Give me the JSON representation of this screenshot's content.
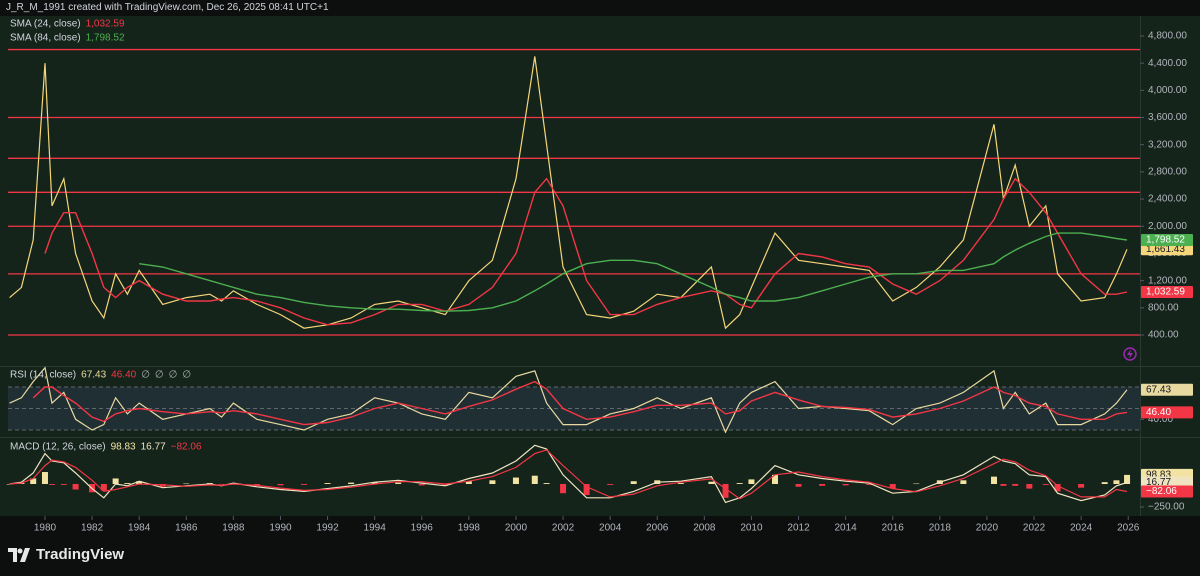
{
  "header": "J_R_M_1991 created with TradingView.com, Dec 26, 2025 08:41 UTC+1",
  "brand": "TradingView",
  "chart_data": [
    {
      "type": "line",
      "x": [
        1978.5,
        1979,
        1979.5,
        1980,
        1980.3,
        1980.8,
        1981.3,
        1982,
        1982.5,
        1983,
        1983.5,
        1984,
        1985,
        1986,
        1987,
        1987.5,
        1988,
        1989,
        1990,
        1991,
        1992,
        1993,
        1994,
        1995,
        1996,
        1997,
        1998,
        1999,
        2000,
        2000.8,
        2001.3,
        2002,
        2003,
        2004,
        2005,
        2006,
        2007,
        2008.3,
        2008.9,
        2009.5,
        2010,
        2011,
        2012,
        2013,
        2014,
        2015,
        2016,
        2017,
        2018,
        2019,
        2020.3,
        2020.7,
        2021.2,
        2021.8,
        2022.5,
        2023,
        2024,
        2025,
        2025.5,
        2025.95
      ],
      "xlim": [
        1978.43,
        2026.5
      ],
      "ylim": [
        -56,
        5094
      ],
      "yticks": [
        {
          "value": 4800,
          "label": "4,800.00"
        },
        {
          "value": 4400,
          "label": "4,400.00"
        },
        {
          "value": 4000,
          "label": "4,000.00"
        },
        {
          "value": 3600,
          "label": "3,600.00"
        },
        {
          "value": 3200,
          "label": "3,200.00"
        },
        {
          "value": 2800,
          "label": "2,800.00"
        },
        {
          "value": 2400,
          "label": "2,400.00"
        },
        {
          "value": 2000,
          "label": "2,000.00"
        },
        {
          "value": 1600,
          "label": "1,600.00"
        },
        {
          "value": 1200,
          "label": "1,200.00"
        },
        {
          "value": 800,
          "label": "800.00"
        },
        {
          "value": 400,
          "label": "400.00"
        }
      ],
      "levels": [
        4600,
        3600,
        3000,
        2500,
        2000,
        1300,
        400
      ],
      "levels_color": "#f23645",
      "series": [
        {
          "color": "#f5d67a",
          "last_label": "1,661.43",
          "values": [
            950,
            1100,
            1800,
            4400,
            2300,
            2700,
            1600,
            900,
            650,
            1300,
            1000,
            1350,
            850,
            950,
            1000,
            900,
            1050,
            850,
            700,
            500,
            550,
            650,
            850,
            900,
            800,
            700,
            1200,
            1500,
            2700,
            4500,
            3200,
            1400,
            700,
            650,
            750,
            1000,
            950,
            1400,
            500,
            700,
            1100,
            1900,
            1500,
            1450,
            1400,
            1350,
            900,
            1100,
            1400,
            1800,
            3500,
            2400,
            2900,
            2000,
            2300,
            1300,
            900,
            950,
            1300,
            1661.43
          ]
        },
        {
          "name": "SMA (24, close)",
          "color": "#f23645",
          "last_label": "1,032.59",
          "values": [
            null,
            null,
            null,
            1600,
            1900,
            2200,
            2200,
            1600,
            1100,
            950,
            1100,
            1200,
            1000,
            900,
            900,
            930,
            950,
            900,
            800,
            650,
            550,
            580,
            700,
            850,
            850,
            750,
            850,
            1100,
            1600,
            2500,
            2700,
            2300,
            1200,
            700,
            700,
            850,
            950,
            1050,
            1000,
            850,
            800,
            1300,
            1600,
            1550,
            1450,
            1400,
            1150,
            1000,
            1200,
            1500,
            2100,
            2400,
            2700,
            2500,
            2200,
            1900,
            1300,
            1000,
            1000,
            1032.59
          ]
        },
        {
          "name": "SMA (84, close)",
          "color": "#4caf50",
          "last_label": "1,798.52",
          "values": [
            null,
            null,
            null,
            null,
            null,
            null,
            null,
            null,
            null,
            null,
            null,
            1450,
            1400,
            1300,
            1200,
            1150,
            1100,
            1000,
            950,
            880,
            830,
            800,
            780,
            780,
            760,
            750,
            760,
            800,
            900,
            1050,
            1150,
            1300,
            1450,
            1500,
            1500,
            1450,
            1300,
            1100,
            1000,
            950,
            900,
            900,
            950,
            1050,
            1150,
            1250,
            1300,
            1300,
            1350,
            1350,
            1450,
            1550,
            1650,
            1750,
            1850,
            1900,
            1900,
            1850,
            1820,
            1798.52
          ]
        }
      ]
    },
    {
      "type": "line",
      "title": "RSI (14, close)",
      "extra": [
        "∅",
        "∅",
        "∅",
        "∅"
      ],
      "x": [
        1978.5,
        1979,
        1979.5,
        1980,
        1980.3,
        1980.8,
        1981.3,
        1982,
        1982.5,
        1983,
        1983.5,
        1984,
        1985,
        1986,
        1987,
        1987.5,
        1988,
        1989,
        1990,
        1991,
        1992,
        1993,
        1994,
        1995,
        1996,
        1997,
        1998,
        1999,
        2000,
        2000.8,
        2001.3,
        2002,
        2003,
        2004,
        2005,
        2006,
        2007,
        2008.3,
        2008.9,
        2009.5,
        2010,
        2011,
        2012,
        2013,
        2014,
        2015,
        2016,
        2017,
        2018,
        2019,
        2020.3,
        2020.7,
        2021.2,
        2021.8,
        2022.5,
        2023,
        2024,
        2025,
        2025.5,
        2025.95
      ],
      "xlim": [
        1978.43,
        2026.5
      ],
      "ylim": [
        23.5,
        87.7
      ],
      "yticks": [
        {
          "value": 40,
          "label": "40.00"
        }
      ],
      "bands": [
        30,
        50,
        70
      ],
      "band_fill": "#1f2f33",
      "series": [
        {
          "color": "#e8d9a0",
          "last_label": "67.43",
          "values": [
            55,
            60,
            75,
            88,
            55,
            65,
            40,
            30,
            35,
            60,
            45,
            55,
            40,
            45,
            50,
            42,
            55,
            40,
            35,
            30,
            40,
            45,
            60,
            55,
            45,
            40,
            65,
            60,
            80,
            85,
            55,
            35,
            35,
            45,
            50,
            60,
            50,
            60,
            28,
            55,
            65,
            75,
            50,
            52,
            50,
            48,
            35,
            50,
            55,
            65,
            85,
            50,
            65,
            45,
            55,
            35,
            35,
            45,
            55,
            67.43
          ]
        },
        {
          "color": "#f23645",
          "last_label": "46.40",
          "values": [
            null,
            null,
            60,
            70,
            70,
            62,
            55,
            42,
            38,
            45,
            48,
            50,
            47,
            45,
            47,
            46,
            48,
            45,
            40,
            35,
            37,
            42,
            50,
            55,
            50,
            45,
            52,
            58,
            68,
            75,
            68,
            50,
            40,
            42,
            47,
            53,
            53,
            55,
            45,
            48,
            57,
            65,
            58,
            52,
            51,
            49,
            42,
            45,
            50,
            57,
            70,
            65,
            62,
            55,
            52,
            45,
            40,
            40,
            45,
            46.4
          ]
        }
      ]
    },
    {
      "type": "macd",
      "title": "MACD (12, 26, close)",
      "x": [
        1978.5,
        1979,
        1979.5,
        1980,
        1980.3,
        1980.8,
        1981.3,
        1982,
        1982.5,
        1983,
        1983.5,
        1984,
        1985,
        1986,
        1987,
        1987.5,
        1988,
        1989,
        1990,
        1991,
        1992,
        1993,
        1994,
        1995,
        1996,
        1997,
        1998,
        1999,
        2000,
        2000.8,
        2001.3,
        2002,
        2003,
        2004,
        2005,
        2006,
        2007,
        2008.3,
        2008.9,
        2009.5,
        2010,
        2011,
        2012,
        2013,
        2014,
        2015,
        2016,
        2017,
        2018,
        2019,
        2020.3,
        2020.7,
        2021.2,
        2021.8,
        2022.5,
        2023,
        2024,
        2025,
        2025.5,
        2025.95
      ],
      "xlim": [
        1978.43,
        2026.5
      ],
      "xticks": [
        1980,
        1982,
        1984,
        1986,
        1988,
        1990,
        1992,
        1994,
        1996,
        1998,
        2000,
        2002,
        2004,
        2006,
        2008,
        2010,
        2012,
        2014,
        2016,
        2018,
        2020,
        2022,
        2024,
        2026
      ],
      "ylim": [
        -326,
        478
      ],
      "yticks": [
        {
          "value": -250,
          "label": "−250.00"
        }
      ],
      "series": [
        {
          "style": "histogram",
          "color": "#f3e3a3",
          "negative_color": "#f23645",
          "last_label": "98.83",
          "values": [
            0,
            10,
            60,
            130,
            -10,
            -10,
            -60,
            -90,
            -70,
            60,
            10,
            30,
            -30,
            5,
            10,
            -5,
            10,
            -15,
            -15,
            -10,
            10,
            15,
            20,
            15,
            -15,
            -20,
            30,
            40,
            70,
            90,
            10,
            -100,
            -120,
            -10,
            30,
            40,
            10,
            25,
            -150,
            10,
            50,
            100,
            -30,
            -20,
            -15,
            -10,
            -50,
            5,
            40,
            40,
            80,
            -20,
            -20,
            -50,
            -10,
            -80,
            -40,
            20,
            40,
            98.83
          ]
        },
        {
          "style": "line",
          "color": "#f0e4c0",
          "last_label": "16.77",
          "values": [
            0,
            20,
            120,
            330,
            250,
            230,
            120,
            -50,
            -150,
            0,
            -20,
            30,
            -40,
            -20,
            0,
            -20,
            10,
            -30,
            -60,
            -80,
            -50,
            -20,
            20,
            40,
            10,
            -20,
            60,
            120,
            250,
            420,
            380,
            100,
            -150,
            -150,
            -80,
            20,
            30,
            80,
            -200,
            -150,
            -50,
            200,
            100,
            60,
            30,
            10,
            -100,
            -80,
            20,
            100,
            300,
            250,
            220,
            100,
            80,
            -100,
            -180,
            -120,
            -20,
            16.77
          ]
        },
        {
          "style": "line",
          "color": "#f23645",
          "last_label": "−82.06",
          "values": [
            0,
            10,
            60,
            200,
            260,
            240,
            180,
            40,
            -80,
            -60,
            -30,
            0,
            -10,
            -25,
            -10,
            -15,
            0,
            -15,
            -45,
            -70,
            -60,
            -35,
            0,
            25,
            25,
            0,
            30,
            80,
            180,
            330,
            370,
            200,
            -30,
            -140,
            -110,
            -20,
            20,
            55,
            -50,
            -160,
            -100,
            100,
            130,
            80,
            45,
            20,
            -50,
            -85,
            -20,
            60,
            220,
            270,
            240,
            150,
            90,
            -20,
            -140,
            -140,
            -60,
            -82.06
          ]
        }
      ]
    }
  ]
}
